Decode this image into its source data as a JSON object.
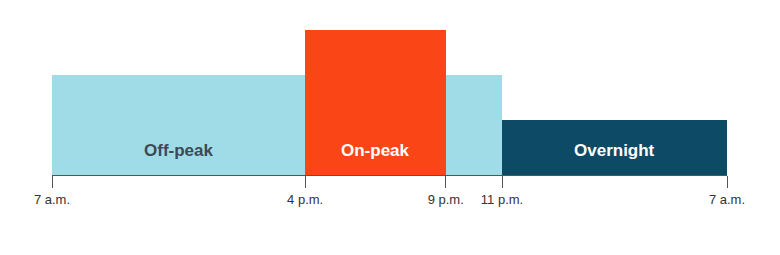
{
  "chart_data": {
    "type": "bar",
    "x": [
      7,
      16,
      21,
      23
    ],
    "widths": [
      9,
      5,
      2,
      8
    ],
    "values": [
      100,
      145,
      100,
      55
    ],
    "labels": [
      "Off-peak",
      "On-peak",
      null,
      "Overnight"
    ],
    "colors": [
      "#a0dce8",
      "#fa4616",
      "#a0dce8",
      "#0c4a66"
    ],
    "xlim": [
      7,
      31
    ],
    "xticks": [
      {
        "value": 7,
        "label": "7 a.m."
      },
      {
        "value": 16,
        "label": "4 p.m."
      },
      {
        "value": 21,
        "label": "9 p.m."
      },
      {
        "value": 23,
        "label": "11 p.m."
      },
      {
        "value": 31,
        "label": "7 a.m."
      }
    ],
    "ylim": [
      0,
      145
    ],
    "yticks": [
      0,
      145
    ],
    "grid": false,
    "tick_labels": "x"
  }
}
